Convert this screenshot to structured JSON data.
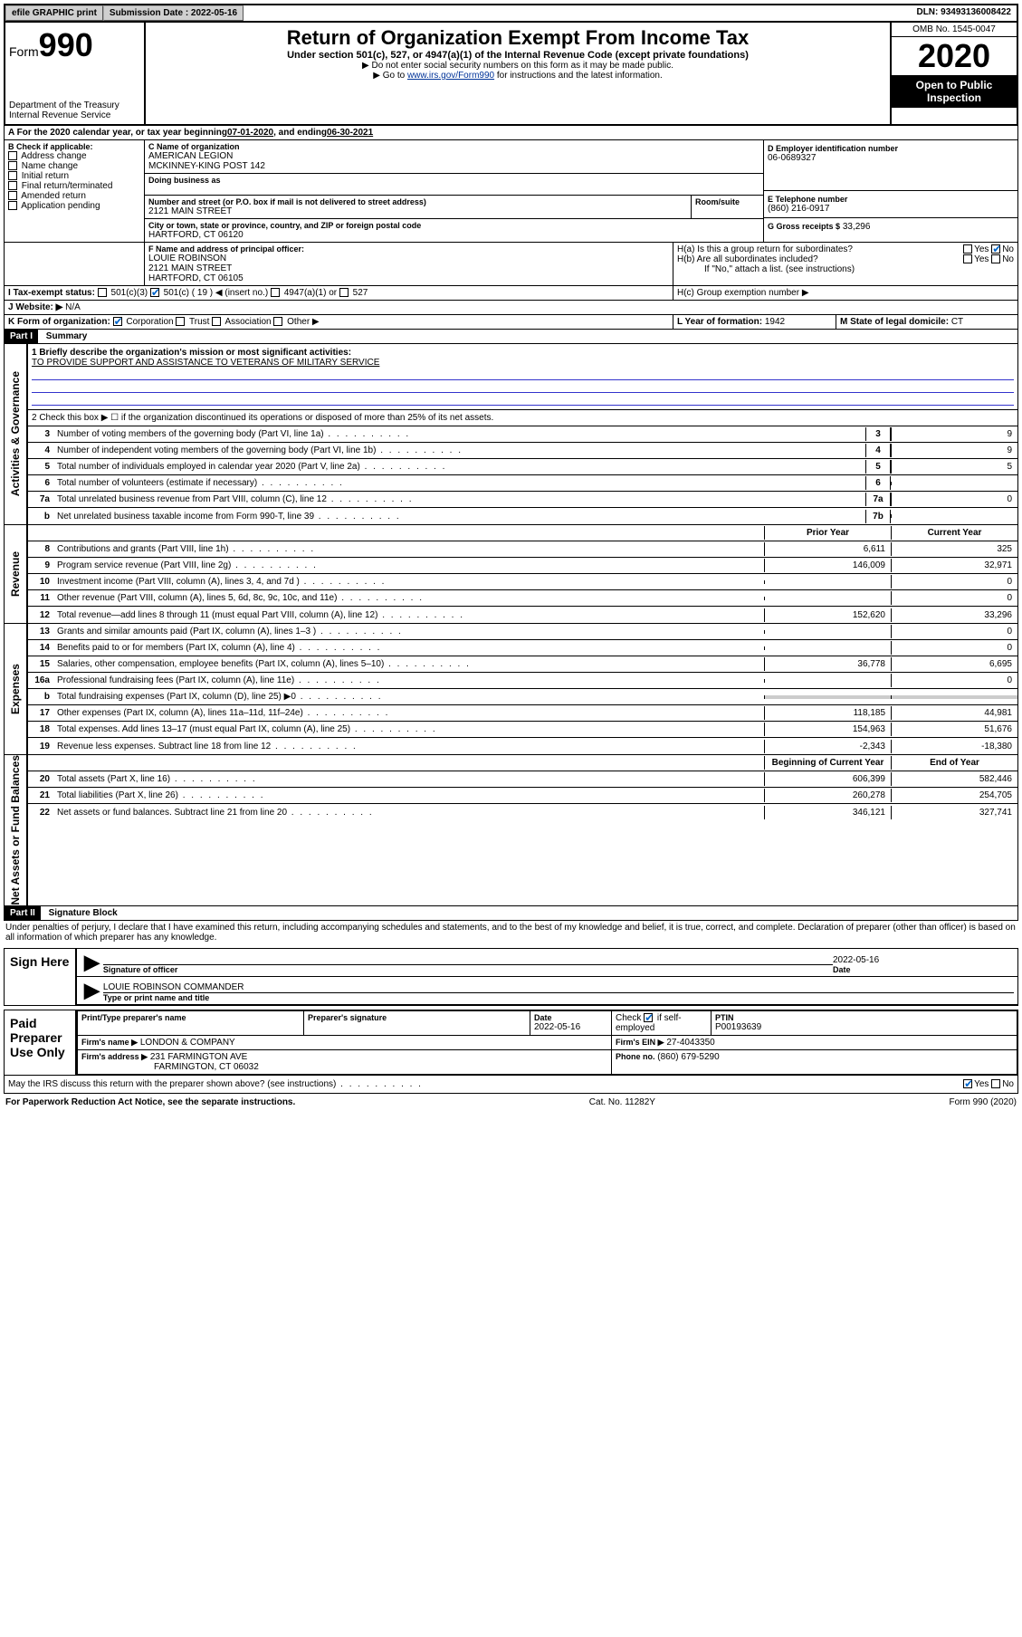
{
  "topbar": {
    "efile": "efile GRAPHIC print",
    "submission_label": "Submission Date : 2022-05-16",
    "dln": "DLN: 93493136008422"
  },
  "header": {
    "form_prefix": "Form",
    "form_number": "990",
    "dept": "Department of the Treasury",
    "irs": "Internal Revenue Service",
    "title": "Return of Organization Exempt From Income Tax",
    "subtitle": "Under section 501(c), 527, or 4947(a)(1) of the Internal Revenue Code (except private foundations)",
    "note1": "▶ Do not enter social security numbers on this form as it may be made public.",
    "note2_prefix": "▶ Go to ",
    "note2_link": "www.irs.gov/Form990",
    "note2_suffix": " for instructions and the latest information.",
    "omb": "OMB No. 1545-0047",
    "year": "2020",
    "inspection": "Open to Public Inspection"
  },
  "period": {
    "label_a": "A For the 2020 calendar year, or tax year beginning ",
    "begin": "07-01-2020",
    "mid": " , and ending ",
    "end": "06-30-2021"
  },
  "section_b": {
    "label": "B Check if applicable:",
    "items": [
      "Address change",
      "Name change",
      "Initial return",
      "Final return/terminated",
      "Amended return",
      "Application pending"
    ]
  },
  "section_c": {
    "name_label": "C Name of organization",
    "name1": "AMERICAN LEGION",
    "name2": "MCKINNEY-KING POST 142",
    "dba_label": "Doing business as",
    "addr_label": "Number and street (or P.O. box if mail is not delivered to street address)",
    "room_label": "Room/suite",
    "addr": "2121 MAIN STREET",
    "city_label": "City or town, state or province, country, and ZIP or foreign postal code",
    "city": "HARTFORD, CT  06120"
  },
  "section_d": {
    "label": "D Employer identification number",
    "val": "06-0689327"
  },
  "section_e": {
    "label": "E Telephone number",
    "val": "(860) 216-0917"
  },
  "section_g": {
    "label": "G Gross receipts $",
    "val": "33,296"
  },
  "section_f": {
    "label": "F Name and address of principal officer:",
    "name": "LOUIE ROBINSON",
    "addr1": "2121 MAIN STREET",
    "addr2": "HARTFORD, CT  06105"
  },
  "section_h": {
    "a_label": "H(a)  Is this a group return for subordinates?",
    "yes": "Yes",
    "no": "No",
    "b_label": "H(b)  Are all subordinates included?",
    "b_note": "If \"No,\" attach a list. (see instructions)",
    "c_label": "H(c)  Group exemption number ▶"
  },
  "section_i": {
    "label": "I   Tax-exempt status:",
    "c3": "501(c)(3)",
    "c": "501(c) ( 19 ) ◀ (insert no.)",
    "a1": "4947(a)(1) or",
    "s527": "527"
  },
  "section_j": {
    "label": "J   Website: ▶",
    "val": "N/A"
  },
  "section_k": {
    "label": "K Form of organization:",
    "corp": "Corporation",
    "trust": "Trust",
    "assoc": "Association",
    "other": "Other ▶"
  },
  "section_l": {
    "label": "L Year of formation:",
    "val": "1942"
  },
  "section_m": {
    "label": "M State of legal domicile:",
    "val": "CT"
  },
  "part1": {
    "header": "Part I",
    "title": "Summary"
  },
  "governance": {
    "label": "Activities & Governance",
    "line1_label": "1   Briefly describe the organization's mission or most significant activities:",
    "line1_val": "TO PROVIDE SUPPORT AND ASSISTANCE TO VETERANS OF MILITARY SERVICE",
    "line2": "2   Check this box ▶ ☐  if the organization discontinued its operations or disposed of more than 25% of its net assets.",
    "lines": [
      {
        "num": "3",
        "text": "Number of voting members of the governing body (Part VI, line 1a)",
        "box": "3",
        "val": "9"
      },
      {
        "num": "4",
        "text": "Number of independent voting members of the governing body (Part VI, line 1b)",
        "box": "4",
        "val": "9"
      },
      {
        "num": "5",
        "text": "Total number of individuals employed in calendar year 2020 (Part V, line 2a)",
        "box": "5",
        "val": "5"
      },
      {
        "num": "6",
        "text": "Total number of volunteers (estimate if necessary)",
        "box": "6",
        "val": ""
      },
      {
        "num": "7a",
        "text": "Total unrelated business revenue from Part VIII, column (C), line 12",
        "box": "7a",
        "val": "0"
      },
      {
        "num": "b",
        "text": "Net unrelated business taxable income from Form 990-T, line 39",
        "box": "7b",
        "val": ""
      }
    ]
  },
  "revenue": {
    "label": "Revenue",
    "col1": "Prior Year",
    "col2": "Current Year",
    "lines": [
      {
        "num": "8",
        "text": "Contributions and grants (Part VIII, line 1h)",
        "v1": "6,611",
        "v2": "325"
      },
      {
        "num": "9",
        "text": "Program service revenue (Part VIII, line 2g)",
        "v1": "146,009",
        "v2": "32,971"
      },
      {
        "num": "10",
        "text": "Investment income (Part VIII, column (A), lines 3, 4, and 7d )",
        "v1": "",
        "v2": "0"
      },
      {
        "num": "11",
        "text": "Other revenue (Part VIII, column (A), lines 5, 6d, 8c, 9c, 10c, and 11e)",
        "v1": "",
        "v2": "0"
      },
      {
        "num": "12",
        "text": "Total revenue—add lines 8 through 11 (must equal Part VIII, column (A), line 12)",
        "v1": "152,620",
        "v2": "33,296"
      }
    ]
  },
  "expenses": {
    "label": "Expenses",
    "lines": [
      {
        "num": "13",
        "text": "Grants and similar amounts paid (Part IX, column (A), lines 1–3 )",
        "v1": "",
        "v2": "0"
      },
      {
        "num": "14",
        "text": "Benefits paid to or for members (Part IX, column (A), line 4)",
        "v1": "",
        "v2": "0"
      },
      {
        "num": "15",
        "text": "Salaries, other compensation, employee benefits (Part IX, column (A), lines 5–10)",
        "v1": "36,778",
        "v2": "6,695"
      },
      {
        "num": "16a",
        "text": "Professional fundraising fees (Part IX, column (A), line 11e)",
        "v1": "",
        "v2": "0"
      },
      {
        "num": "b",
        "text": "Total fundraising expenses (Part IX, column (D), line 25) ▶0",
        "v1": "shaded",
        "v2": "shaded"
      },
      {
        "num": "17",
        "text": "Other expenses (Part IX, column (A), lines 11a–11d, 11f–24e)",
        "v1": "118,185",
        "v2": "44,981"
      },
      {
        "num": "18",
        "text": "Total expenses. Add lines 13–17 (must equal Part IX, column (A), line 25)",
        "v1": "154,963",
        "v2": "51,676"
      },
      {
        "num": "19",
        "text": "Revenue less expenses. Subtract line 18 from line 12",
        "v1": "-2,343",
        "v2": "-18,380"
      }
    ]
  },
  "netassets": {
    "label": "Net Assets or Fund Balances",
    "col1": "Beginning of Current Year",
    "col2": "End of Year",
    "lines": [
      {
        "num": "20",
        "text": "Total assets (Part X, line 16)",
        "v1": "606,399",
        "v2": "582,446"
      },
      {
        "num": "21",
        "text": "Total liabilities (Part X, line 26)",
        "v1": "260,278",
        "v2": "254,705"
      },
      {
        "num": "22",
        "text": "Net assets or fund balances. Subtract line 21 from line 20",
        "v1": "346,121",
        "v2": "327,741"
      }
    ]
  },
  "part2": {
    "header": "Part II",
    "title": "Signature Block",
    "declaration": "Under penalties of perjury, I declare that I have examined this return, including accompanying schedules and statements, and to the best of my knowledge and belief, it is true, correct, and complete. Declaration of preparer (other than officer) is based on all information of which preparer has any knowledge."
  },
  "sign": {
    "label": "Sign Here",
    "sig_label": "Signature of officer",
    "date_label": "Date",
    "date_val": "2022-05-16",
    "name": "LOUIE ROBINSON  COMMANDER",
    "name_label": "Type or print name and title"
  },
  "preparer": {
    "label": "Paid Preparer Use Only",
    "col_name": "Print/Type preparer's name",
    "col_sig": "Preparer's signature",
    "col_date": "Date",
    "date_val": "2022-05-16",
    "check_label": "Check ☑ if self-employed",
    "ptin_label": "PTIN",
    "ptin": "P00193639",
    "firm_name_label": "Firm's name    ▶",
    "firm_name": "LONDON & COMPANY",
    "firm_ein_label": "Firm's EIN ▶",
    "firm_ein": "27-4043350",
    "firm_addr_label": "Firm's address ▶",
    "firm_addr1": "231 FARMINGTON AVE",
    "firm_addr2": "FARMINGTON, CT  06032",
    "phone_label": "Phone no.",
    "phone": "(860) 679-5290"
  },
  "discuss": {
    "text": "May the IRS discuss this return with the preparer shown above? (see instructions)",
    "yes": "Yes",
    "no": "No"
  },
  "footer": {
    "left": "For Paperwork Reduction Act Notice, see the separate instructions.",
    "mid": "Cat. No. 11282Y",
    "right": "Form 990 (2020)"
  }
}
